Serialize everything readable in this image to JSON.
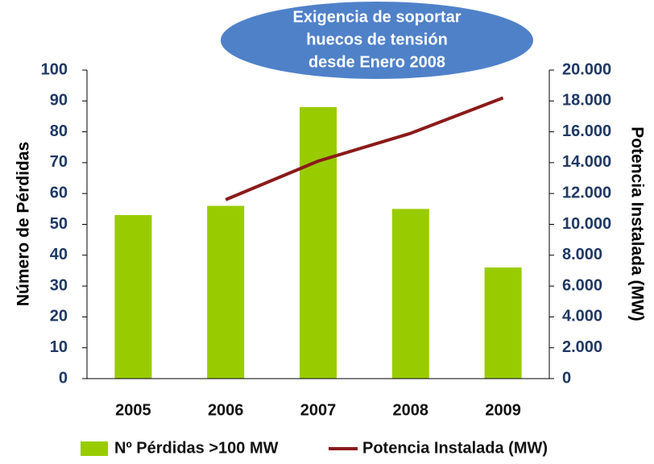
{
  "chart_data": {
    "type": "bar",
    "annotation": [
      "Exigencia de soportar",
      "huecos de tensión",
      "desde Enero 2008"
    ],
    "y_label": "Número de Pérdidas",
    "y2_label": "Potencia Instalada (MW)",
    "categories": [
      "2005",
      "2006",
      "2007",
      "2008",
      "2009"
    ],
    "series": [
      {
        "name": "Nº Pérdidas >100 MW",
        "type": "bar",
        "color": "#99cc00",
        "values": [
          53,
          56,
          88,
          55,
          36
        ]
      },
      {
        "name": "Potencia Instalada (MW)",
        "type": "line",
        "axis": "y2",
        "color": "#8b1a1a",
        "values": [
          null,
          11600,
          14100,
          15900,
          18200
        ]
      }
    ],
    "ylim": [
      0,
      100
    ],
    "yticks": [
      0,
      10,
      20,
      30,
      40,
      50,
      60,
      70,
      80,
      90,
      100
    ],
    "y2lim": [
      0,
      20000
    ],
    "y2ticks": [
      0,
      {
        "value": 2000,
        "label": "2.000"
      },
      {
        "value": 4000,
        "label": "4.000"
      },
      {
        "value": 6000,
        "label": "6.000"
      },
      {
        "value": 8000,
        "label": "8.000"
      },
      {
        "value": 10000,
        "label": "10.000"
      },
      {
        "value": 12000,
        "label": "12.000"
      },
      {
        "value": 14000,
        "label": "14.000"
      },
      {
        "value": 16000,
        "label": "16.000"
      },
      {
        "value": 18000,
        "label": "18.000"
      },
      {
        "value": 20000,
        "label": "20.000"
      }
    ],
    "legend": "bottom"
  }
}
